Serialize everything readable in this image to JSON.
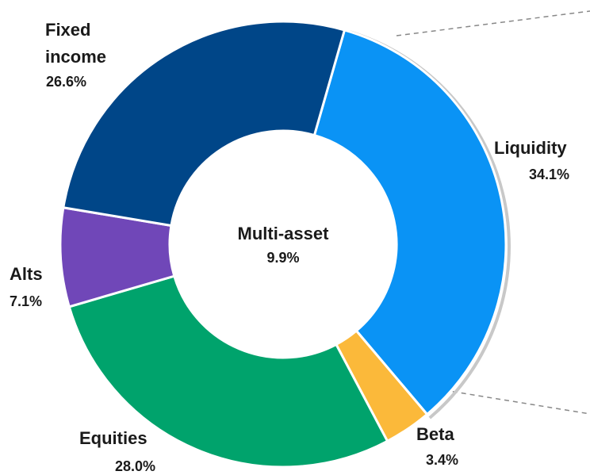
{
  "chart_data": {
    "type": "donut",
    "categories": [
      "Liquidity",
      "Beta",
      "Equities",
      "Alts",
      "Fixed income"
    ],
    "values": [
      34.1,
      3.4,
      28.0,
      7.1,
      26.6
    ],
    "value_labels": [
      "34.1%",
      "3.4%",
      "28.0%",
      "7.1%",
      "26.6%"
    ],
    "colors": [
      "#0a93f5",
      "#fbb93a",
      "#00a36c",
      "#7047b8",
      "#004688"
    ],
    "center_label": "Multi-asset",
    "center_value": 9.9,
    "center_value_label": "9.9%"
  }
}
